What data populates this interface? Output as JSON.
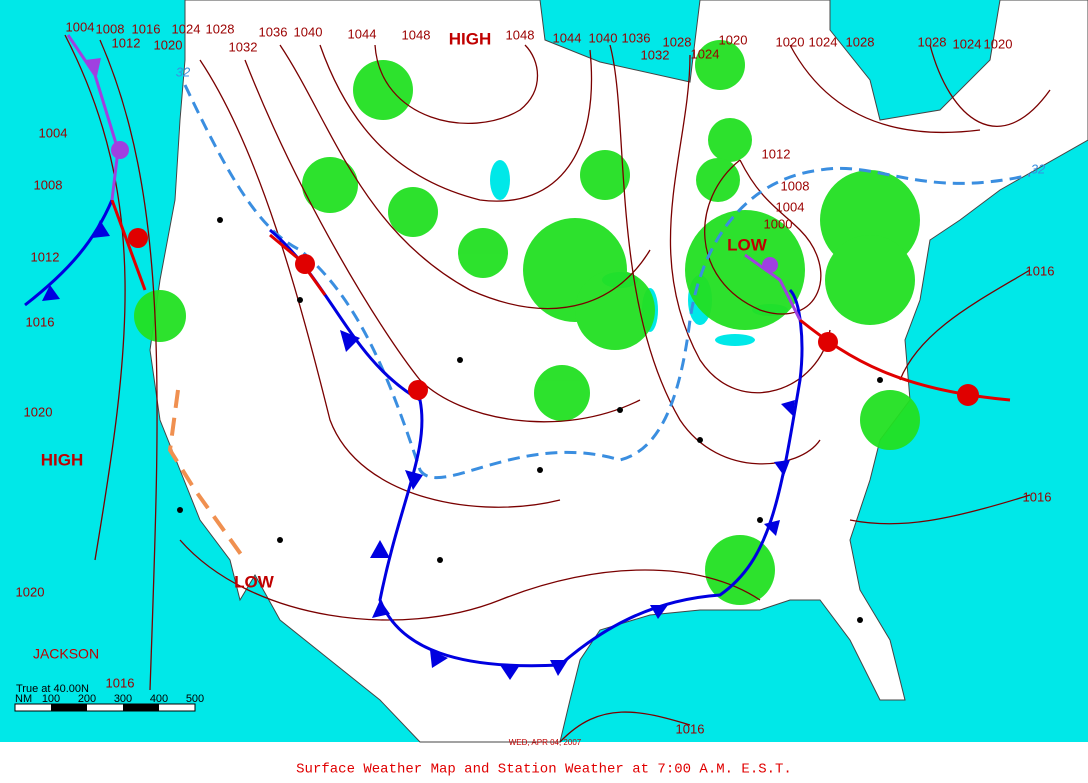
{
  "map": {
    "isobar_labels": [
      1004,
      1008,
      1012,
      1016,
      1020,
      1024,
      1028,
      1032,
      1036,
      1040,
      1044,
      1048,
      1048,
      1044,
      1040,
      1036,
      1032,
      1028,
      1024,
      1020,
      1020,
      1024,
      1028,
      1028,
      1024,
      1020,
      1004,
      1008,
      1012,
      1016,
      1020,
      1020,
      1016,
      1012,
      1008,
      1004,
      1000,
      1016,
      1016,
      1016
    ],
    "pressure_centers": [
      "HIGH",
      "HIGH",
      "LOW",
      "LOW"
    ],
    "city_label": "JACKSON",
    "temperature_labels": [
      32,
      32
    ],
    "scale": {
      "title": "True at 40.00N",
      "unit": "NM",
      "ticks": [
        100,
        200,
        300,
        400,
        500
      ]
    },
    "date": "WED, APR 04, 2007"
  },
  "caption": "Surface Weather Map and Station Weather at 7:00 A.M. E.S.T."
}
